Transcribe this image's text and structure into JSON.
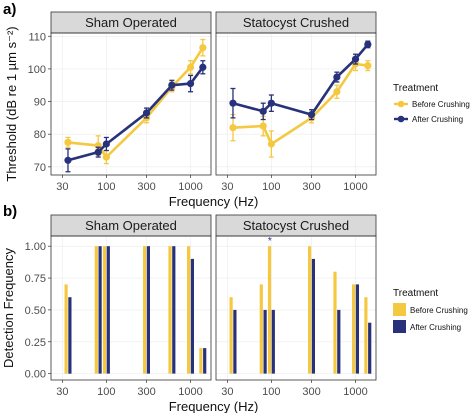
{
  "colors": {
    "before": "#F5C842",
    "after": "#27327A"
  },
  "labels": {
    "panel_a": "a)",
    "panel_b": "b)"
  },
  "chart_data": [
    {
      "type": "line",
      "ylabel": "Threshold (dB re 1 µm s⁻²)",
      "xlabel": "Frequency (Hz)",
      "x_scale": "log",
      "x_ticks": [
        30,
        100,
        300,
        1000
      ],
      "xlim": [
        22,
        1750
      ],
      "y_ticks": [
        70,
        80,
        90,
        100,
        110
      ],
      "ylim": [
        67.5,
        111
      ],
      "grid": true,
      "legend": {
        "title": "Treatment",
        "placement": "right",
        "entries": [
          {
            "key": "before",
            "label": "Before Crushing"
          },
          {
            "key": "after",
            "label": "After Crushing"
          }
        ]
      },
      "facets": [
        {
          "strip": "Sham Operated",
          "series": [
            {
              "key": "before",
              "x": [
                35,
                80,
                100,
                300,
                600,
                1000,
                1400
              ],
              "y": [
                77.5,
                76.5,
                73,
                85,
                94.5,
                100.5,
                106.5
              ],
              "err": [
                1.5,
                3,
                2,
                1.5,
                1.5,
                2,
                2.5
              ]
            },
            {
              "key": "after",
              "x": [
                35,
                80,
                100,
                300,
                600,
                1000,
                1400
              ],
              "y": [
                72,
                74.5,
                77,
                86.5,
                95,
                95.5,
                100.5
              ],
              "err": [
                3.5,
                1.5,
                2,
                1.5,
                1.5,
                2.5,
                2
              ]
            }
          ]
        },
        {
          "strip": "Statocyst Crushed",
          "series": [
            {
              "key": "before",
              "x": [
                35,
                80,
                100,
                300,
                600,
                1000,
                1400
              ],
              "y": [
                82,
                82.5,
                77,
                85,
                93,
                101.5,
                101
              ],
              "err": [
                4,
                3,
                4,
                1.5,
                2,
                2,
                1.5
              ]
            },
            {
              "key": "after",
              "x": [
                35,
                80,
                100,
                300,
                600,
                1000,
                1400
              ],
              "y": [
                89.5,
                87,
                89.5,
                86,
                97.5,
                103,
                107.5
              ],
              "err": [
                4.5,
                2.5,
                2.5,
                1.5,
                1.5,
                1.5,
                1
              ]
            }
          ]
        }
      ]
    },
    {
      "type": "bar",
      "ylabel": "Detection Frequency",
      "xlabel": "Frequency (Hz)",
      "x_scale": "log",
      "x_ticks": [
        30,
        100,
        300,
        1000
      ],
      "xlim": [
        22,
        1750
      ],
      "y_ticks": [
        0,
        0.25,
        0.5,
        0.75,
        1
      ],
      "y_tick_labels": [
        "0.00",
        "0.25",
        "0.50",
        "0.75",
        "1.00"
      ],
      "ylim": [
        -0.05,
        1.08
      ],
      "grid": true,
      "legend": {
        "title": "Treatment",
        "placement": "right",
        "entries": [
          {
            "key": "before",
            "label": "Before Crushing"
          },
          {
            "key": "after",
            "label": "After Crushing"
          }
        ]
      },
      "facets": [
        {
          "strip": "Sham Operated",
          "categories": [
            35,
            80,
            100,
            300,
            600,
            1000,
            1400
          ],
          "series": [
            {
              "key": "before",
              "values": [
                0.7,
                1.0,
                1.0,
                1.0,
                1.0,
                1.0,
                0.2
              ]
            },
            {
              "key": "after",
              "values": [
                0.6,
                1.0,
                1.0,
                1.0,
                1.0,
                0.9,
                0.2
              ]
            }
          ],
          "annotations": []
        },
        {
          "strip": "Statocyst Crushed",
          "categories": [
            35,
            80,
            100,
            300,
            600,
            1000,
            1400
          ],
          "series": [
            {
              "key": "before",
              "values": [
                0.6,
                0.7,
                1.0,
                1.0,
                0.8,
                0.7,
                0.6
              ]
            },
            {
              "key": "after",
              "values": [
                0.5,
                0.5,
                0.5,
                0.9,
                0.5,
                0.7,
                0.4
              ]
            }
          ],
          "annotations": [
            {
              "x": 100,
              "text": "*"
            }
          ]
        }
      ]
    }
  ]
}
